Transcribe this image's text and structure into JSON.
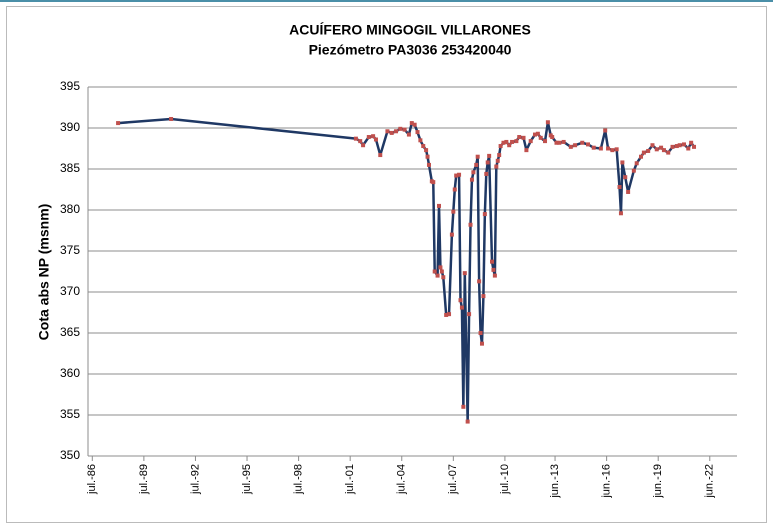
{
  "chart_data": {
    "type": "line",
    "title": "ACUÍFERO MINGOGIL VILLARONES",
    "subtitle": "Piezómetro PA3036 253420040",
    "y_label": "Cota abs NP (msnm)",
    "x": [
      "1988-01",
      "1991-02",
      "2001-11",
      "2002-02",
      "2002-04",
      "2002-08",
      "2002-11",
      "2003-01",
      "2003-04",
      "2003-09",
      "2003-12",
      "2004-03",
      "2004-06",
      "2004-09",
      "2004-12",
      "2005-02",
      "2005-04",
      "2005-06",
      "2005-08",
      "2005-10",
      "2005-12",
      "2006-01",
      "2006-02",
      "2006-04",
      "2006-05",
      "2006-06",
      "2006-08",
      "2006-09",
      "2006-10",
      "2006-11",
      "2006-12",
      "2007-02",
      "2007-04",
      "2007-06",
      "2007-07",
      "2007-08",
      "2007-09",
      "2007-11",
      "2007-12",
      "2008-01",
      "2008-02",
      "2008-03",
      "2008-05",
      "2008-06",
      "2008-07",
      "2008-08",
      "2008-09",
      "2008-11",
      "2008-12",
      "2009-01",
      "2009-02",
      "2009-03",
      "2009-04",
      "2009-05",
      "2009-06",
      "2009-07",
      "2009-08",
      "2009-10",
      "2009-11",
      "2009-12",
      "2010-01",
      "2010-02",
      "2010-03",
      "2010-04",
      "2010-06",
      "2010-08",
      "2010-10",
      "2010-12",
      "2011-03",
      "2011-05",
      "2011-08",
      "2011-10",
      "2012-01",
      "2012-04",
      "2012-06",
      "2012-08",
      "2012-11",
      "2013-01",
      "2013-03",
      "2013-04",
      "2013-07",
      "2013-09",
      "2013-12",
      "2014-05",
      "2014-08",
      "2015-01",
      "2015-05",
      "2015-09",
      "2016-02",
      "2016-05",
      "2016-07",
      "2016-10",
      "2017-01",
      "2017-03",
      "2017-04",
      "2017-05",
      "2017-07",
      "2017-09",
      "2018-01",
      "2018-03",
      "2018-06",
      "2018-08",
      "2018-11",
      "2019-02",
      "2019-05",
      "2019-08",
      "2019-10",
      "2020-01",
      "2020-04",
      "2020-07",
      "2020-09",
      "2020-12",
      "2021-03",
      "2021-05",
      "2021-07"
    ],
    "series": [
      {
        "color": "#1f3864",
        "marker_color": "#c0504d",
        "values": [
          390.6,
          391.1,
          388.7,
          388.4,
          387.9,
          388.9,
          389.0,
          388.6,
          386.7,
          389.6,
          389.4,
          389.6,
          389.9,
          389.8,
          389.2,
          390.6,
          390.4,
          389.5,
          388.5,
          387.8,
          387.3,
          386.5,
          385.5,
          383.5,
          383.4,
          372.5,
          372.0,
          380.5,
          373.0,
          372.5,
          371.8,
          367.2,
          367.3,
          377.0,
          379.8,
          382.5,
          384.2,
          384.3,
          369.0,
          368.1,
          356.0,
          372.3,
          354.2,
          367.3,
          378.2,
          383.7,
          384.6,
          385.5,
          386.5,
          371.3,
          365.0,
          363.7,
          369.5,
          379.5,
          384.4,
          385.8,
          386.6,
          373.7,
          372.7,
          372.0,
          385.3,
          386.0,
          386.7,
          387.8,
          388.2,
          388.3,
          387.9,
          388.3,
          388.4,
          388.9,
          388.8,
          387.3,
          388.4,
          389.2,
          389.3,
          388.8,
          388.4,
          390.7,
          389.1,
          388.9,
          388.2,
          388.2,
          388.3,
          387.7,
          387.9,
          388.2,
          388.0,
          387.6,
          387.5,
          389.7,
          387.5,
          387.3,
          387.4,
          382.8,
          379.6,
          385.8,
          384.0,
          382.2,
          384.8,
          385.7,
          386.5,
          387.0,
          387.2,
          387.9,
          387.4,
          387.6,
          387.3,
          387.0,
          387.7,
          387.8,
          387.9,
          388.0,
          387.5,
          388.2,
          387.7
        ]
      }
    ],
    "xlim": [
      "1986-04",
      "2024-01"
    ],
    "xticks": [
      {
        "value": "1986-07",
        "label": "jul.-86"
      },
      {
        "value": "1989-07",
        "label": "jul.-89"
      },
      {
        "value": "1992-07",
        "label": "jul.-92"
      },
      {
        "value": "1995-07",
        "label": "jul.-95"
      },
      {
        "value": "1998-07",
        "label": "jul.-98"
      },
      {
        "value": "2001-07",
        "label": "jul.-01"
      },
      {
        "value": "2004-07",
        "label": "jul.-04"
      },
      {
        "value": "2007-07",
        "label": "jul.-07"
      },
      {
        "value": "2010-07",
        "label": "jul.-10"
      },
      {
        "value": "2013-06",
        "label": "jun.-13"
      },
      {
        "value": "2016-06",
        "label": "jun.-16"
      },
      {
        "value": "2019-06",
        "label": "jun.-19"
      },
      {
        "value": "2022-06",
        "label": "jun.-22"
      }
    ],
    "ylim": [
      350,
      395
    ],
    "yticks": [
      350,
      355,
      360,
      365,
      370,
      375,
      380,
      385,
      390,
      395
    ],
    "grid": true
  }
}
